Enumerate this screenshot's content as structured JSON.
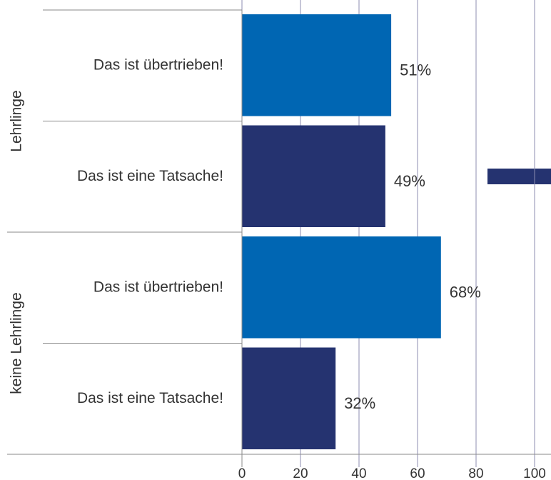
{
  "chart_data": {
    "type": "bar",
    "orientation": "horizontal",
    "groups": [
      {
        "name": "Lehrlinge",
        "categories": [
          "Das ist übertrieben!",
          "Das ist eine Tatsache!"
        ],
        "values": [
          51,
          49
        ],
        "value_labels": [
          "51%",
          "49%"
        ],
        "colors": [
          "#0066b3",
          "#253370"
        ]
      },
      {
        "name": "keine Lehrlinge",
        "categories": [
          "Das ist übertrieben!",
          "Das ist eine Tatsache!"
        ],
        "values": [
          68,
          32
        ],
        "value_labels": [
          "68%",
          "32%"
        ],
        "colors": [
          "#0066b3",
          "#253370"
        ]
      }
    ],
    "xlim": [
      0,
      100
    ],
    "xticks": [
      0,
      20,
      40,
      60,
      80,
      100
    ],
    "grid": true
  }
}
